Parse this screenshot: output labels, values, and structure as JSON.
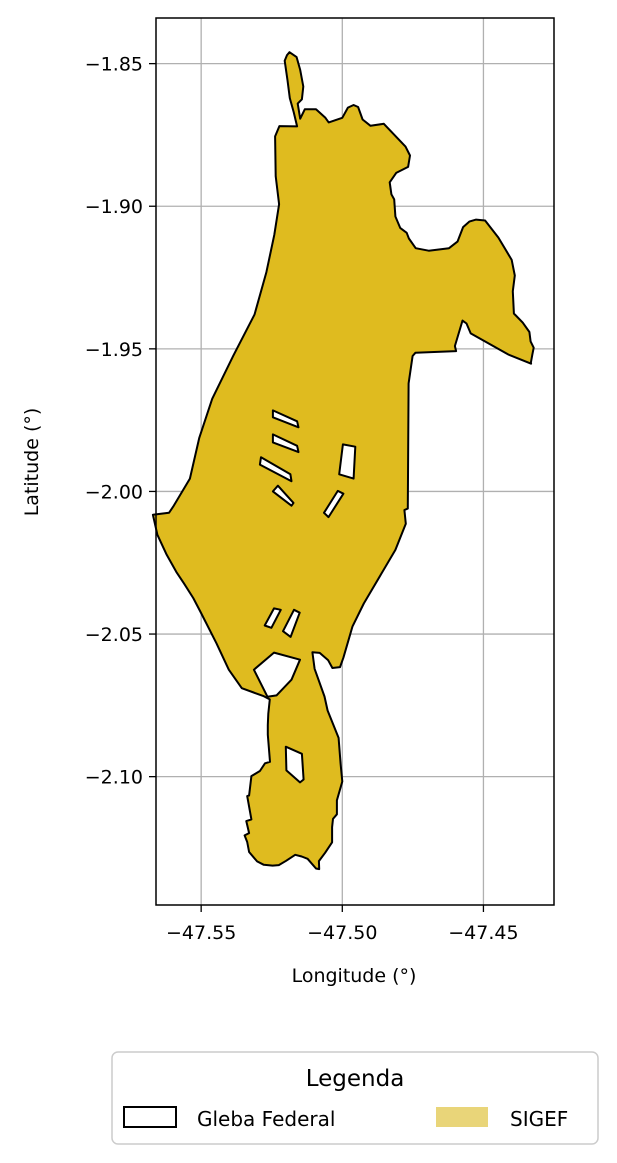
{
  "chart_data": {
    "type": "map",
    "xlabel": "Longitude (°)",
    "ylabel": "Latitude (°)",
    "xlim": [
      -47.566,
      -47.425
    ],
    "ylim": [
      -2.145,
      -1.834
    ],
    "xticks": [
      -47.55,
      -47.5,
      -47.45
    ],
    "yticks": [
      -1.85,
      -1.9,
      -1.95,
      -2.0,
      -2.05,
      -2.1
    ],
    "x_tick_labels": [
      "−47.55",
      "−47.50",
      "−47.45"
    ],
    "y_tick_labels": [
      "−1.85",
      "−1.90",
      "−1.95",
      "−2.00",
      "−2.05",
      "−2.10"
    ],
    "grid": true,
    "colors": {
      "sigef_fill": "#dfbb1f",
      "outline": "#000000",
      "legend_sigef": "#e9d579",
      "grid": "#b0b0b0"
    },
    "legend": {
      "title": "Legenda",
      "placement": "bottom-center",
      "entries": [
        {
          "label": "Gleba Federal",
          "style": "outline"
        },
        {
          "label": "SIGEF",
          "style": "fill"
        }
      ]
    },
    "polygon_sigef": [
      [
        -47.5048,
        -1.8706
      ],
      [
        -47.5,
        -1.869
      ],
      [
        -47.498,
        -1.8654
      ],
      [
        -47.496,
        -1.8645
      ],
      [
        -47.4944,
        -1.8652
      ],
      [
        -47.4928,
        -1.8696
      ],
      [
        -47.49,
        -1.8718
      ],
      [
        -47.4853,
        -1.8711
      ],
      [
        -47.4776,
        -1.8791
      ],
      [
        -47.476,
        -1.8822
      ],
      [
        -47.4767,
        -1.8862
      ],
      [
        -47.4809,
        -1.8883
      ],
      [
        -47.4832,
        -1.8916
      ],
      [
        -47.4826,
        -1.8958
      ],
      [
        -47.4816,
        -1.8976
      ],
      [
        -47.4812,
        -1.9036
      ],
      [
        -47.4795,
        -1.9076
      ],
      [
        -47.4772,
        -1.9093
      ],
      [
        -47.4764,
        -1.9113
      ],
      [
        -47.474,
        -1.9147
      ],
      [
        -47.4694,
        -1.9156
      ],
      [
        -47.4622,
        -1.9147
      ],
      [
        -47.4592,
        -1.9124
      ],
      [
        -47.4572,
        -1.9073
      ],
      [
        -47.455,
        -1.9054
      ],
      [
        -47.4526,
        -1.9047
      ],
      [
        -47.4494,
        -1.905
      ],
      [
        -47.4447,
        -1.911
      ],
      [
        -47.44,
        -1.9188
      ],
      [
        -47.4389,
        -1.9243
      ],
      [
        -47.4396,
        -1.9298
      ],
      [
        -47.4392,
        -1.9376
      ],
      [
        -47.4361,
        -1.9408
      ],
      [
        -47.4337,
        -1.9441
      ],
      [
        -47.4333,
        -1.9474
      ],
      [
        -47.4322,
        -1.9496
      ],
      [
        -47.4327,
        -1.9521
      ],
      [
        -47.4332,
        -1.9548
      ],
      [
        -47.4331,
        -1.9552
      ],
      [
        -47.4412,
        -1.952
      ],
      [
        -47.4545,
        -1.9446
      ],
      [
        -47.456,
        -1.9411
      ],
      [
        -47.4574,
        -1.9401
      ],
      [
        -47.4601,
        -1.949
      ],
      [
        -47.4597,
        -1.9508
      ],
      [
        -47.4741,
        -1.9514
      ],
      [
        -47.4751,
        -1.9525
      ],
      [
        -47.4765,
        -1.9621
      ],
      [
        -47.4768,
        -2.006
      ],
      [
        -47.478,
        -2.0065
      ],
      [
        -47.4775,
        -2.0113
      ],
      [
        -47.4812,
        -2.0205
      ],
      [
        -47.4924,
        -2.0393
      ],
      [
        -47.4964,
        -2.0473
      ],
      [
        -47.4996,
        -2.0583
      ],
      [
        -47.5008,
        -2.0616
      ],
      [
        -47.5035,
        -2.0619
      ],
      [
        -47.505,
        -2.0592
      ],
      [
        -47.508,
        -2.0566
      ],
      [
        -47.5106,
        -2.0564
      ],
      [
        -47.5098,
        -2.0622
      ],
      [
        -47.5063,
        -2.0719
      ],
      [
        -47.5052,
        -2.0768
      ],
      [
        -47.5013,
        -2.0864
      ],
      [
        -47.5006,
        -2.0955
      ],
      [
        -47.5,
        -2.1017
      ],
      [
        -47.5019,
        -2.1083
      ],
      [
        -47.5019,
        -2.1132
      ],
      [
        -47.5033,
        -2.1148
      ],
      [
        -47.5036,
        -2.1177
      ],
      [
        -47.5036,
        -2.123
      ],
      [
        -47.5061,
        -2.1267
      ],
      [
        -47.5083,
        -2.1296
      ],
      [
        -47.5082,
        -2.1324
      ],
      [
        -47.5093,
        -2.1322
      ],
      [
        -47.5123,
        -2.1288
      ],
      [
        -47.5144,
        -2.128
      ],
      [
        -47.5167,
        -2.1274
      ],
      [
        -47.5199,
        -2.1295
      ],
      [
        -47.5225,
        -2.131
      ],
      [
        -47.5247,
        -2.1312
      ],
      [
        -47.5278,
        -2.1309
      ],
      [
        -47.5302,
        -2.1297
      ],
      [
        -47.533,
        -2.1264
      ],
      [
        -47.5337,
        -2.1229
      ],
      [
        -47.5346,
        -2.1206
      ],
      [
        -47.533,
        -2.1198
      ],
      [
        -47.534,
        -2.1156
      ],
      [
        -47.5322,
        -2.115
      ],
      [
        -47.5337,
        -2.1068
      ],
      [
        -47.533,
        -2.1066
      ],
      [
        -47.5322,
        -2.0998
      ],
      [
        -47.5292,
        -2.098
      ],
      [
        -47.5274,
        -2.0953
      ],
      [
        -47.5256,
        -2.0948
      ],
      [
        -47.5264,
        -2.0853
      ],
      [
        -47.5264,
        -2.0819
      ],
      [
        -47.5262,
        -2.0779
      ],
      [
        -47.5257,
        -2.0729
      ],
      [
        -47.5278,
        -2.0718
      ],
      [
        -47.5356,
        -2.069
      ],
      [
        -47.5402,
        -2.0625
      ],
      [
        -47.5446,
        -2.0532
      ],
      [
        -47.5503,
        -2.0421
      ],
      [
        -47.5528,
        -2.0374
      ],
      [
        -47.5561,
        -2.0322
      ],
      [
        -47.5588,
        -2.0282
      ],
      [
        -47.5622,
        -2.0222
      ],
      [
        -47.5655,
        -2.0152
      ],
      [
        -47.5671,
        -2.0082
      ],
      [
        -47.5614,
        -2.0075
      ],
      [
        -47.5599,
        -2.0053
      ],
      [
        -47.554,
        -1.9955
      ],
      [
        -47.5507,
        -1.9813
      ],
      [
        -47.5461,
        -1.9675
      ],
      [
        -47.5386,
        -1.9524
      ],
      [
        -47.5311,
        -1.938
      ],
      [
        -47.5269,
        -1.9231
      ],
      [
        -47.5241,
        -1.91
      ],
      [
        -47.5224,
        -1.8993
      ],
      [
        -47.5236,
        -1.8895
      ],
      [
        -47.5238,
        -1.8755
      ],
      [
        -47.5223,
        -1.8719
      ],
      [
        -47.516,
        -1.872
      ],
      [
        -47.5172,
        -1.867
      ],
      [
        -47.5186,
        -1.8621
      ],
      [
        -47.5194,
        -1.8558
      ],
      [
        -47.5204,
        -1.849
      ],
      [
        -47.5196,
        -1.847
      ],
      [
        -47.5187,
        -1.846
      ],
      [
        -47.5162,
        -1.8477
      ],
      [
        -47.5149,
        -1.8522
      ],
      [
        -47.5138,
        -1.858
      ],
      [
        -47.5143,
        -1.8625
      ],
      [
        -47.5158,
        -1.864
      ],
      [
        -47.5149,
        -1.8693
      ],
      [
        -47.5133,
        -1.866
      ],
      [
        -47.5093,
        -1.866
      ],
      [
        -47.506,
        -1.869
      ]
    ]
  }
}
